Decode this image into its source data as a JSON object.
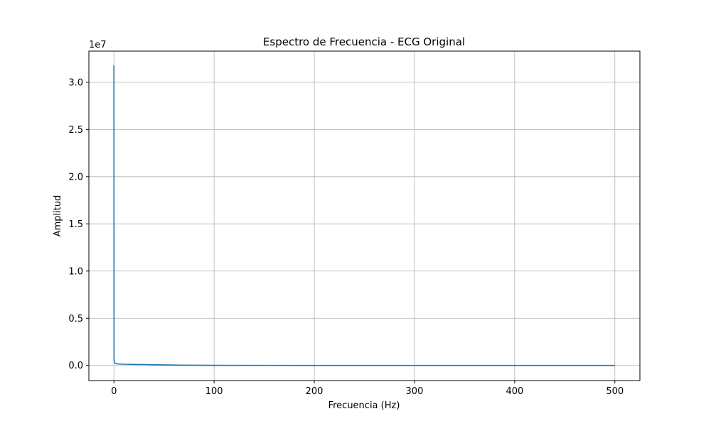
{
  "chart_data": {
    "type": "line",
    "title": "Espectro de Frecuencia - ECG Original",
    "xlabel": "Frecuencia (Hz)",
    "ylabel": "Amplitud",
    "y_offset_label": "1e7",
    "xlim": [
      -25,
      525
    ],
    "ylim": [
      -1600000,
      33300000
    ],
    "x_ticks": [
      0,
      100,
      200,
      300,
      400,
      500
    ],
    "x_tick_labels": [
      "0",
      "100",
      "200",
      "300",
      "400",
      "500"
    ],
    "y_ticks": [
      0,
      5000000,
      10000000,
      15000000,
      20000000,
      25000000,
      30000000
    ],
    "y_tick_labels": [
      "0.0",
      "0.5",
      "1.0",
      "1.5",
      "2.0",
      "2.5",
      "3.0"
    ],
    "grid": true,
    "series": [
      {
        "color": "#1f77b4",
        "x": [
          0,
          0.1,
          0.3,
          0.6,
          1,
          2,
          3,
          5,
          10,
          20,
          30,
          40,
          50,
          60,
          100,
          200,
          300,
          400,
          500
        ],
        "y": [
          31800000,
          600000,
          400000,
          300000,
          250000,
          200000,
          180000,
          150000,
          130000,
          110000,
          100000,
          80000,
          60000,
          40000,
          10000,
          5000,
          3000,
          2000,
          1000
        ]
      }
    ]
  }
}
